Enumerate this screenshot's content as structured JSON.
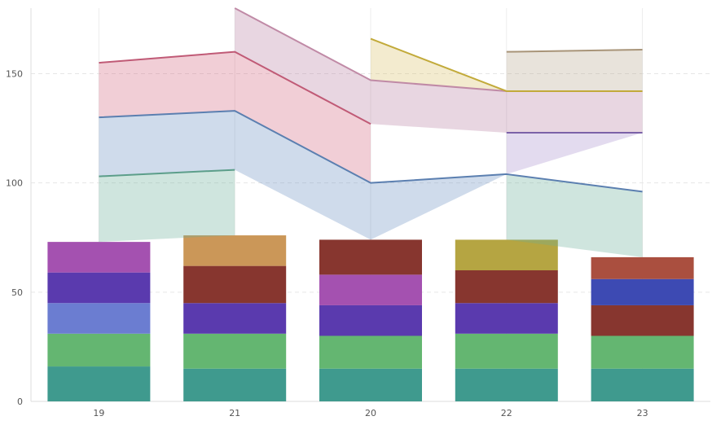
{
  "chart_data": {
    "type": "bar",
    "categories": [
      "19",
      "21",
      "20",
      "22",
      "23"
    ],
    "y_ticks": [
      "0",
      "50",
      "100",
      "150"
    ],
    "ylim": [
      0,
      180
    ],
    "grid": "horizontal dashed",
    "bar_stacks": [
      {
        "category": "19",
        "segments": [
          {
            "value": 16,
            "color": "#3f9a8e"
          },
          {
            "value": 15,
            "color": "#64b671"
          },
          {
            "value": 14,
            "color": "#6b7dd1"
          },
          {
            "value": 14,
            "color": "#5a3aae"
          },
          {
            "value": 14,
            "color": "#a451b0"
          }
        ]
      },
      {
        "category": "21",
        "segments": [
          {
            "value": 15,
            "color": "#3f9a8e"
          },
          {
            "value": 16,
            "color": "#64b671"
          },
          {
            "value": 14,
            "color": "#5a3aae"
          },
          {
            "value": 17,
            "color": "#87362f"
          },
          {
            "value": 14,
            "color": "#cb9758"
          }
        ]
      },
      {
        "category": "20",
        "segments": [
          {
            "value": 15,
            "color": "#3f9a8e"
          },
          {
            "value": 15,
            "color": "#64b671"
          },
          {
            "value": 14,
            "color": "#5a3aae"
          },
          {
            "value": 14,
            "color": "#a451b0"
          },
          {
            "value": 16,
            "color": "#87362f"
          }
        ]
      },
      {
        "category": "22",
        "segments": [
          {
            "value": 15,
            "color": "#3f9a8e"
          },
          {
            "value": 16,
            "color": "#64b671"
          },
          {
            "value": 14,
            "color": "#5a3aae"
          },
          {
            "value": 15,
            "color": "#87362f"
          },
          {
            "value": 14,
            "color": "#b5a542"
          }
        ]
      },
      {
        "category": "23",
        "segments": [
          {
            "value": 15,
            "color": "#3f9a8e"
          },
          {
            "value": 15,
            "color": "#64b671"
          },
          {
            "value": 14,
            "color": "#87362f"
          },
          {
            "value": 12,
            "color": "#3d4ab3"
          },
          {
            "value": 10,
            "color": "#aa4f3f"
          }
        ]
      }
    ],
    "area_bands": [
      {
        "color": "#6aad97",
        "points": [
          [
            0,
            73,
            103
          ],
          [
            1,
            76,
            106
          ]
        ]
      },
      {
        "color": "#6b8ec0",
        "points": [
          [
            0,
            103,
            130
          ],
          [
            1,
            106,
            133
          ],
          [
            2,
            74,
            100
          ],
          [
            3,
            104,
            104
          ]
        ]
      },
      {
        "color": "#d4677e",
        "points": [
          [
            0,
            130,
            155
          ],
          [
            1,
            133,
            160
          ],
          [
            2,
            100,
            127
          ]
        ]
      },
      {
        "color": "#b87fa3",
        "points": [
          [
            1,
            160,
            180
          ],
          [
            2,
            127,
            147
          ],
          [
            3,
            123,
            142
          ],
          [
            4,
            123,
            142
          ]
        ]
      },
      {
        "color": "#d9c26a",
        "points": [
          [
            2,
            147,
            166
          ],
          [
            3,
            142,
            142
          ]
        ]
      },
      {
        "color": "#a98fcd",
        "points": [
          [
            3,
            104,
            123
          ],
          [
            4,
            123,
            123
          ]
        ]
      },
      {
        "color": "#6aad97",
        "points": [
          [
            3,
            74,
            104
          ],
          [
            4,
            66,
            96
          ]
        ]
      },
      {
        "color": "#b7a88e",
        "points": [
          [
            3,
            142,
            160
          ],
          [
            4,
            142,
            161
          ]
        ]
      }
    ],
    "lines": [
      {
        "color": "#5c9e8a",
        "points": [
          [
            0,
            103
          ],
          [
            1,
            106
          ]
        ]
      },
      {
        "color": "#5b7fb0",
        "points": [
          [
            0,
            130
          ],
          [
            1,
            133
          ],
          [
            2,
            100
          ],
          [
            3,
            104
          ],
          [
            4,
            96
          ]
        ]
      },
      {
        "color": "#c05a76",
        "points": [
          [
            0,
            155
          ],
          [
            1,
            160
          ],
          [
            2,
            127
          ]
        ]
      },
      {
        "color": "#c08aa6",
        "points": [
          [
            1,
            180
          ],
          [
            2,
            147
          ],
          [
            3,
            142
          ],
          [
            4,
            142
          ]
        ]
      },
      {
        "color": "#c2aa3a",
        "points": [
          [
            2,
            166
          ],
          [
            3,
            142
          ],
          [
            4,
            142
          ]
        ]
      },
      {
        "color": "#7b62a8",
        "points": [
          [
            3,
            123
          ],
          [
            4,
            123
          ]
        ]
      },
      {
        "color": "#a89478",
        "points": [
          [
            3,
            160
          ],
          [
            4,
            161
          ]
        ]
      }
    ]
  }
}
